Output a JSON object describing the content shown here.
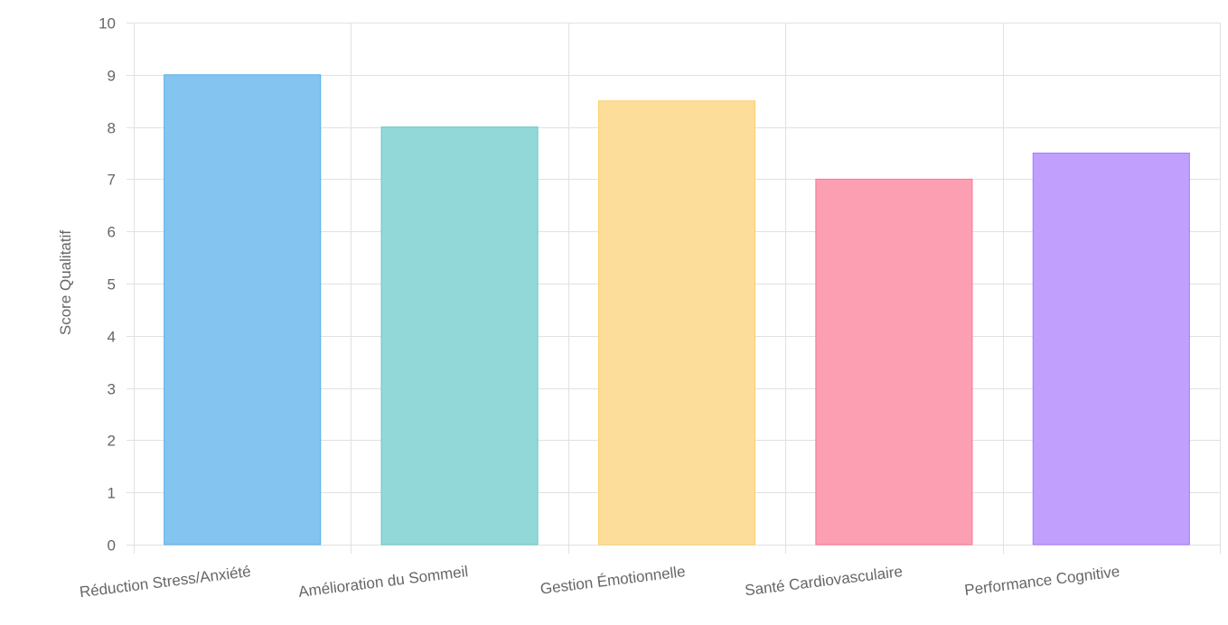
{
  "chart_data": {
    "type": "bar",
    "categories": [
      "Réduction Stress/Anxiété",
      "Amélioration du Sommeil",
      "Gestion Émotionnelle",
      "Santé Cardiovasculaire",
      "Performance Cognitive"
    ],
    "values": [
      9,
      8,
      8.5,
      7,
      7.5
    ],
    "ylabel": "Score Qualitatif",
    "ylim": [
      0,
      10
    ],
    "yticks": [
      0,
      1,
      2,
      3,
      4,
      5,
      6,
      7,
      8,
      9,
      10
    ],
    "grid": true,
    "legend": "none",
    "colors": {
      "fills": [
        "#84c4f1",
        "#93d8d8",
        "#fcde9a",
        "#fd9fb2",
        "#c0a0fc"
      ],
      "borders": [
        "#5aaeea",
        "#6cc8c8",
        "#fbcf6b",
        "#fc7390",
        "#a678fb"
      ]
    }
  }
}
